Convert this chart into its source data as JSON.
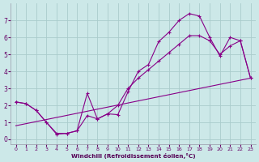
{
  "series1_x": [
    0,
    1,
    2,
    3,
    4,
    5,
    6,
    7,
    8,
    9,
    10,
    11,
    12,
    13,
    14,
    15,
    16,
    17,
    18,
    19,
    20,
    21,
    22,
    23
  ],
  "series1_y": [
    2.2,
    2.1,
    1.7,
    1.0,
    0.3,
    0.35,
    0.5,
    2.7,
    1.2,
    1.5,
    1.45,
    2.8,
    4.0,
    4.4,
    5.75,
    6.3,
    7.0,
    7.4,
    7.25,
    6.0,
    4.9,
    6.0,
    5.8,
    3.6
  ],
  "series2_x": [
    0,
    1,
    2,
    3,
    4,
    5,
    6,
    7,
    8,
    9,
    10,
    11,
    12,
    13,
    14,
    15,
    16,
    17,
    18,
    19,
    20,
    21,
    22,
    23
  ],
  "series2_y": [
    2.2,
    2.1,
    1.7,
    1.0,
    0.35,
    0.35,
    0.5,
    1.4,
    1.2,
    1.5,
    2.0,
    3.0,
    3.6,
    4.1,
    4.6,
    5.1,
    5.6,
    6.1,
    6.1,
    5.8,
    5.0,
    5.5,
    5.8,
    3.6
  ],
  "series3_x": [
    0,
    23
  ],
  "series3_y": [
    0.8,
    3.6
  ],
  "line_color": "#880088",
  "bg_color": "#cce8e8",
  "grid_color": "#aacccc",
  "xlabel": "Windchill (Refroidissement éolien,°C)",
  "ylim": [
    -0.3,
    8.0
  ],
  "xlim": [
    -0.5,
    23.5
  ],
  "yticks": [
    0,
    1,
    2,
    3,
    4,
    5,
    6,
    7
  ],
  "xticks": [
    0,
    1,
    2,
    3,
    4,
    5,
    6,
    7,
    8,
    9,
    10,
    11,
    12,
    13,
    14,
    15,
    16,
    17,
    18,
    19,
    20,
    21,
    22,
    23
  ]
}
